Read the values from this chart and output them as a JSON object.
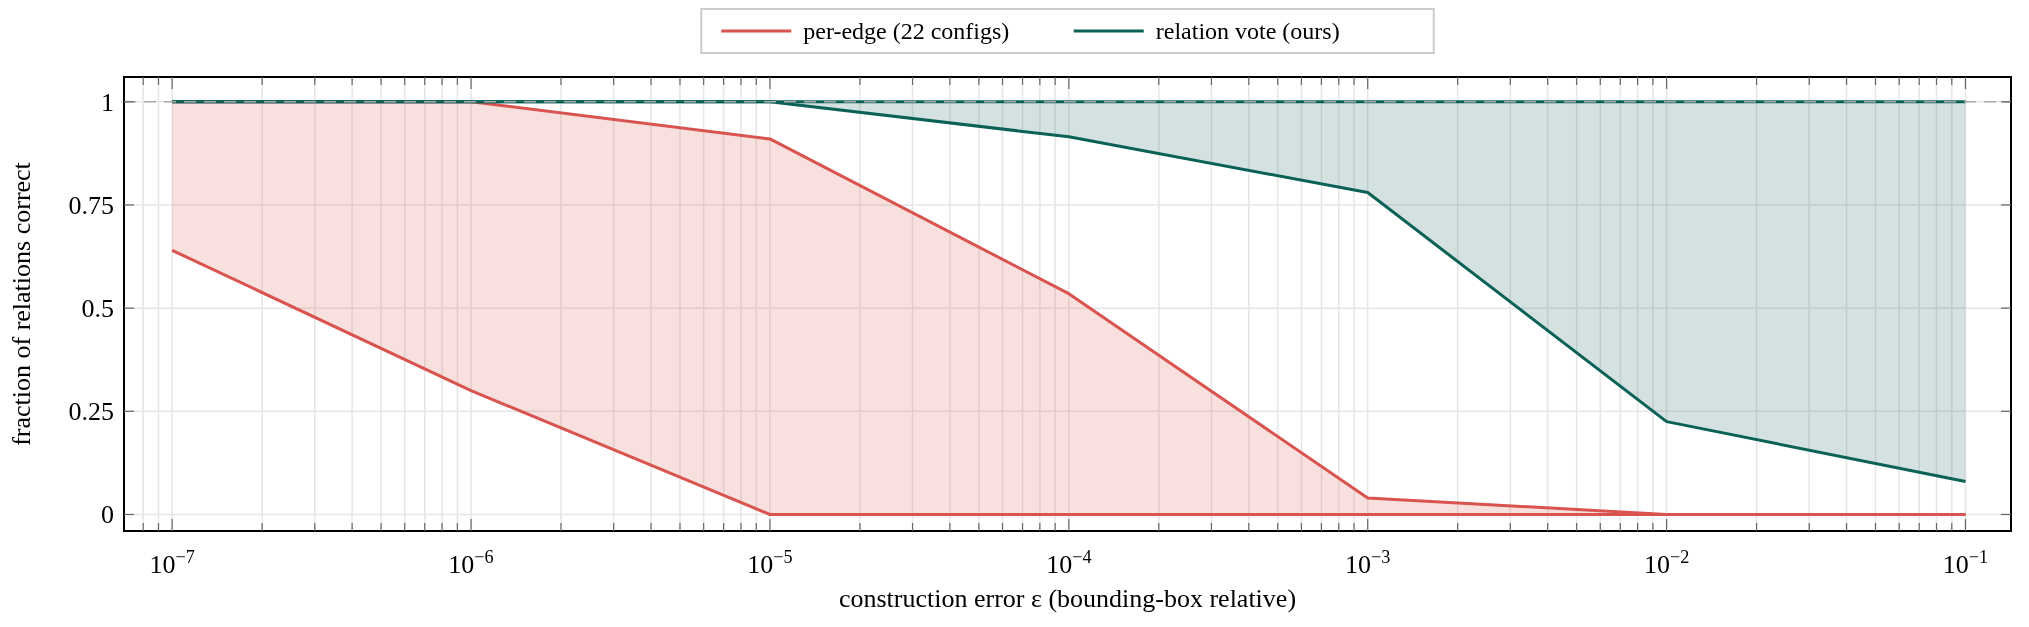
{
  "chart_data": {
    "type": "line",
    "xlabel": "construction error ε (bounding-box relative)",
    "ylabel": "fraction of relations correct",
    "x": [
      1e-07,
      1e-06,
      1e-05,
      0.0001,
      0.001,
      0.01,
      0.1
    ],
    "series": [
      {
        "name": "per-edge (22 configs)",
        "color": "#d9534f",
        "values": [
          1,
          1,
          0.91,
          0.535,
          0.04,
          0,
          0
        ],
        "lower": [
          0.64,
          0.3,
          0,
          0,
          0,
          0,
          0
        ],
        "upper": [
          1,
          1,
          0.91,
          0.535,
          0.04,
          0,
          0
        ]
      },
      {
        "color": "#d9534f",
        "values": [
          0.64,
          0.3,
          0,
          0,
          0,
          0,
          0
        ]
      },
      {
        "name": "relation vote (ours)",
        "color": "#0b6156",
        "values": [
          1,
          1,
          1,
          1,
          1,
          1,
          1
        ],
        "lower": [
          1,
          1,
          1,
          0.915,
          0.78,
          0.225,
          0.08
        ],
        "upper": [
          1,
          1,
          1,
          1,
          1,
          1,
          1
        ]
      },
      {
        "color": "#0b6156",
        "values": [
          1,
          1,
          1,
          0.915,
          0.78,
          0.225,
          0.08
        ]
      }
    ],
    "log": "x",
    "xlim": [
      6.9e-08,
      0.142
    ],
    "ylim": [
      -0.04,
      1.06
    ],
    "xticks": [
      {
        "value": 8e-08,
        "label": null
      },
      {
        "value": 9e-08,
        "label": null
      },
      {
        "value": 1e-07,
        "label": "10$^{−7}$"
      },
      {
        "value": 2e-07,
        "label": null
      },
      {
        "value": 3e-07,
        "label": null
      },
      {
        "value": 4e-07,
        "label": null
      },
      {
        "value": 5e-07,
        "label": null
      },
      {
        "value": 6e-07,
        "label": null
      },
      {
        "value": 7e-07,
        "label": null
      },
      {
        "value": 8e-07,
        "label": null
      },
      {
        "value": 9e-07,
        "label": null
      },
      {
        "value": 1e-06,
        "label": "10$^{−6}$"
      },
      {
        "value": 2e-06,
        "label": null
      },
      {
        "value": 3e-06,
        "label": null
      },
      {
        "value": 4e-06,
        "label": null
      },
      {
        "value": 5e-06,
        "label": null
      },
      {
        "value": 6e-06,
        "label": null
      },
      {
        "value": 7e-06,
        "label": null
      },
      {
        "value": 8e-06,
        "label": null
      },
      {
        "value": 9e-06,
        "label": null
      },
      {
        "value": 1e-05,
        "label": "10$^{−5}$"
      },
      {
        "value": 2e-05,
        "label": null
      },
      {
        "value": 3e-05,
        "label": null
      },
      {
        "value": 4e-05,
        "label": null
      },
      {
        "value": 5e-05,
        "label": null
      },
      {
        "value": 6e-05,
        "label": null
      },
      {
        "value": 7e-05,
        "label": null
      },
      {
        "value": 8e-05,
        "label": null
      },
      {
        "value": 9e-05,
        "label": null
      },
      {
        "value": 0.0001,
        "label": "10$^{−4}$"
      },
      {
        "value": 0.0002,
        "label": null
      },
      {
        "value": 0.0003,
        "label": null
      },
      {
        "value": 0.0004,
        "label": null
      },
      {
        "value": 0.0005,
        "label": null
      },
      {
        "value": 0.0006,
        "label": null
      },
      {
        "value": 0.0007,
        "label": null
      },
      {
        "value": 0.0008,
        "label": null
      },
      {
        "value": 0.0009,
        "label": null
      },
      {
        "value": 0.001,
        "label": "10$^{−3}$"
      },
      {
        "value": 0.002,
        "label": null
      },
      {
        "value": 0.003,
        "label": null
      },
      {
        "value": 0.004,
        "label": null
      },
      {
        "value": 0.005,
        "label": null
      },
      {
        "value": 0.006,
        "label": null
      },
      {
        "value": 0.007,
        "label": null
      },
      {
        "value": 0.008,
        "label": null
      },
      {
        "value": 0.009,
        "label": null
      },
      {
        "value": 0.01,
        "label": "10$^{−2}$"
      },
      {
        "value": 0.02,
        "label": null
      },
      {
        "value": 0.03,
        "label": null
      },
      {
        "value": 0.04,
        "label": null
      },
      {
        "value": 0.05,
        "label": null
      },
      {
        "value": 0.06,
        "label": null
      },
      {
        "value": 0.07,
        "label": null
      },
      {
        "value": 0.08,
        "label": null
      },
      {
        "value": 0.09,
        "label": null
      },
      {
        "value": 0.1,
        "label": "10$^{−1}$"
      }
    ],
    "yticks": [
      0,
      0.25,
      0.5,
      0.75,
      1
    ],
    "ref_lines": [
      {
        "axis": "y",
        "value": 1,
        "color": "#aaaaaa",
        "line_style": "dashed"
      }
    ],
    "grid": true,
    "legend": "top"
  }
}
